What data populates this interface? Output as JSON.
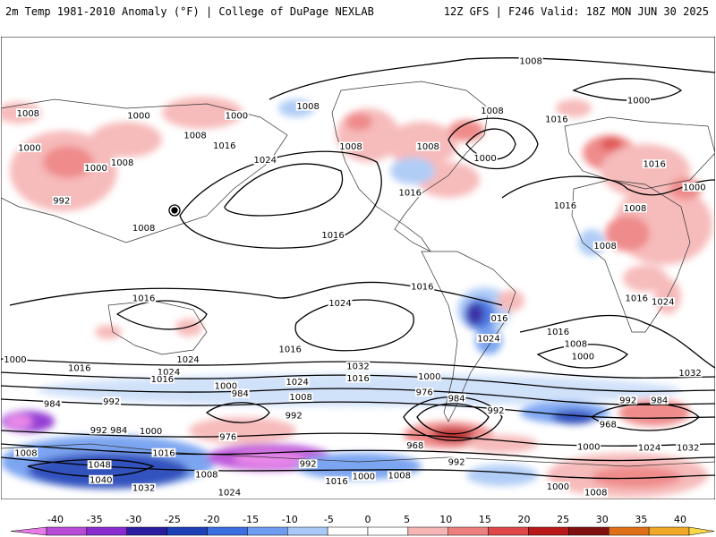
{
  "header": {
    "left_title": "2m Temp 1981-2010 Anomaly (°F) | College of DuPage NEXLAB",
    "right_title": "12Z GFS | F246 Valid: 18Z MON JUN 30 2025"
  },
  "colorbar": {
    "ticks": [
      "-40",
      "-35",
      "-30",
      "-25",
      "-20",
      "-15",
      "-10",
      "-5",
      "0",
      "5",
      "10",
      "15",
      "20",
      "25",
      "30",
      "35",
      "40"
    ],
    "colors": [
      "#e87be8",
      "#b84ad8",
      "#8a2bd0",
      "#2a1c9e",
      "#1d3fb8",
      "#3b6ee0",
      "#6e9cf0",
      "#a8c8f5",
      "#ffffff",
      "#ffffff",
      "#f6b4b4",
      "#ee7f7f",
      "#de4848",
      "#b81818",
      "#801010",
      "#e07018",
      "#f0a828",
      "#f8d848"
    ]
  },
  "isobar_labels": [
    {
      "text": "1008",
      "fx": 0.742,
      "fy": 0.052
    },
    {
      "text": "1000",
      "fx": 0.893,
      "fy": 0.137
    },
    {
      "text": "1008",
      "fx": 0.038,
      "fy": 0.165
    },
    {
      "text": "1000",
      "fx": 0.193,
      "fy": 0.17
    },
    {
      "text": "1000",
      "fx": 0.33,
      "fy": 0.17
    },
    {
      "text": "1008",
      "fx": 0.43,
      "fy": 0.15
    },
    {
      "text": "1008",
      "fx": 0.688,
      "fy": 0.16
    },
    {
      "text": "1016",
      "fx": 0.778,
      "fy": 0.178
    },
    {
      "text": "1008",
      "fx": 0.272,
      "fy": 0.213
    },
    {
      "text": "1016",
      "fx": 0.313,
      "fy": 0.235
    },
    {
      "text": "1008",
      "fx": 0.49,
      "fy": 0.237
    },
    {
      "text": "1008",
      "fx": 0.598,
      "fy": 0.237
    },
    {
      "text": "1000",
      "fx": 0.678,
      "fy": 0.262
    },
    {
      "text": "1000",
      "fx": 0.04,
      "fy": 0.24
    },
    {
      "text": "1000",
      "fx": 0.133,
      "fy": 0.283
    },
    {
      "text": "1008",
      "fx": 0.17,
      "fy": 0.272
    },
    {
      "text": "1024",
      "fx": 0.37,
      "fy": 0.266
    },
    {
      "text": "1016",
      "fx": 0.573,
      "fy": 0.337
    },
    {
      "text": "1016",
      "fx": 0.915,
      "fy": 0.275
    },
    {
      "text": "1000",
      "fx": 0.971,
      "fy": 0.325
    },
    {
      "text": "992",
      "fx": 0.085,
      "fy": 0.354
    },
    {
      "text": "1016",
      "fx": 0.79,
      "fy": 0.365
    },
    {
      "text": "1008",
      "fx": 0.888,
      "fy": 0.37
    },
    {
      "text": "1008",
      "fx": 0.2,
      "fy": 0.413
    },
    {
      "text": "1016",
      "fx": 0.465,
      "fy": 0.428
    },
    {
      "text": "1008",
      "fx": 0.846,
      "fy": 0.452
    },
    {
      "text": "1016",
      "fx": 0.2,
      "fy": 0.565
    },
    {
      "text": "1016",
      "fx": 0.59,
      "fy": 0.54
    },
    {
      "text": "1024",
      "fx": 0.475,
      "fy": 0.575
    },
    {
      "text": "016",
      "fx": 0.698,
      "fy": 0.608
    },
    {
      "text": "1016",
      "fx": 0.89,
      "fy": 0.565
    },
    {
      "text": "1024",
      "fx": 0.927,
      "fy": 0.573
    },
    {
      "text": "1024",
      "fx": 0.683,
      "fy": 0.652
    },
    {
      "text": "1016",
      "fx": 0.405,
      "fy": 0.675
    },
    {
      "text": "1024",
      "fx": 0.262,
      "fy": 0.697
    },
    {
      "text": "1016",
      "fx": 0.78,
      "fy": 0.637
    },
    {
      "text": "1008",
      "fx": 0.805,
      "fy": 0.663
    },
    {
      "text": "1000",
      "fx": 0.02,
      "fy": 0.697
    },
    {
      "text": "1016",
      "fx": 0.11,
      "fy": 0.716
    },
    {
      "text": "1024",
      "fx": 0.235,
      "fy": 0.724
    },
    {
      "text": "1032",
      "fx": 0.5,
      "fy": 0.712
    },
    {
      "text": "1000",
      "fx": 0.815,
      "fy": 0.691
    },
    {
      "text": "1032",
      "fx": 0.965,
      "fy": 0.726
    },
    {
      "text": "1016",
      "fx": 0.226,
      "fy": 0.74
    },
    {
      "text": "1024",
      "fx": 0.415,
      "fy": 0.746
    },
    {
      "text": "1016",
      "fx": 0.5,
      "fy": 0.738
    },
    {
      "text": "1000",
      "fx": 0.315,
      "fy": 0.754
    },
    {
      "text": "1000",
      "fx": 0.6,
      "fy": 0.734
    },
    {
      "text": "976",
      "fx": 0.593,
      "fy": 0.768
    },
    {
      "text": "984",
      "fx": 0.335,
      "fy": 0.771
    },
    {
      "text": "1008",
      "fx": 0.42,
      "fy": 0.779
    },
    {
      "text": "984",
      "fx": 0.638,
      "fy": 0.781
    },
    {
      "text": "984",
      "fx": 0.072,
      "fy": 0.793
    },
    {
      "text": "992",
      "fx": 0.155,
      "fy": 0.788
    },
    {
      "text": "992",
      "fx": 0.878,
      "fy": 0.785
    },
    {
      "text": "984",
      "fx": 0.922,
      "fy": 0.785
    },
    {
      "text": "992",
      "fx": 0.41,
      "fy": 0.818
    },
    {
      "text": "992",
      "fx": 0.693,
      "fy": 0.808
    },
    {
      "text": "968",
      "fx": 0.85,
      "fy": 0.838
    },
    {
      "text": "992",
      "fx": 0.137,
      "fy": 0.85
    },
    {
      "text": "984",
      "fx": 0.165,
      "fy": 0.85
    },
    {
      "text": "1000",
      "fx": 0.21,
      "fy": 0.852
    },
    {
      "text": "976",
      "fx": 0.318,
      "fy": 0.865
    },
    {
      "text": "968",
      "fx": 0.58,
      "fy": 0.883
    },
    {
      "text": "1000",
      "fx": 0.823,
      "fy": 0.886
    },
    {
      "text": "1024",
      "fx": 0.908,
      "fy": 0.888
    },
    {
      "text": "1032",
      "fx": 0.962,
      "fy": 0.888
    },
    {
      "text": "1008",
      "fx": 0.035,
      "fy": 0.899
    },
    {
      "text": "1016",
      "fx": 0.228,
      "fy": 0.899
    },
    {
      "text": "992",
      "fx": 0.43,
      "fy": 0.923
    },
    {
      "text": "992",
      "fx": 0.638,
      "fy": 0.919
    },
    {
      "text": "1048",
      "fx": 0.138,
      "fy": 0.925
    },
    {
      "text": "1008",
      "fx": 0.288,
      "fy": 0.946
    },
    {
      "text": "1000",
      "fx": 0.508,
      "fy": 0.95
    },
    {
      "text": "1008",
      "fx": 0.558,
      "fy": 0.948
    },
    {
      "text": "1040",
      "fx": 0.14,
      "fy": 0.957
    },
    {
      "text": "1016",
      "fx": 0.47,
      "fy": 0.96
    },
    {
      "text": "1032",
      "fx": 0.2,
      "fy": 0.975
    },
    {
      "text": "1024",
      "fx": 0.32,
      "fy": 0.985
    },
    {
      "text": "1000",
      "fx": 0.78,
      "fy": 0.972
    },
    {
      "text": "1008",
      "fx": 0.833,
      "fy": 0.985
    }
  ]
}
